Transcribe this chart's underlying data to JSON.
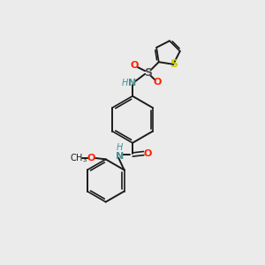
{
  "bg_color": "#ebebeb",
  "bond_color": "#1a1a1a",
  "N_color": "#4a9090",
  "O_color": "#ff2200",
  "S_thiophene_color": "#cccc00",
  "S_sulfonyl_color": "#555555",
  "figsize": [
    3.0,
    3.0
  ],
  "dpi": 100,
  "xlim": [
    0,
    10
  ],
  "ylim": [
    0,
    10
  ]
}
